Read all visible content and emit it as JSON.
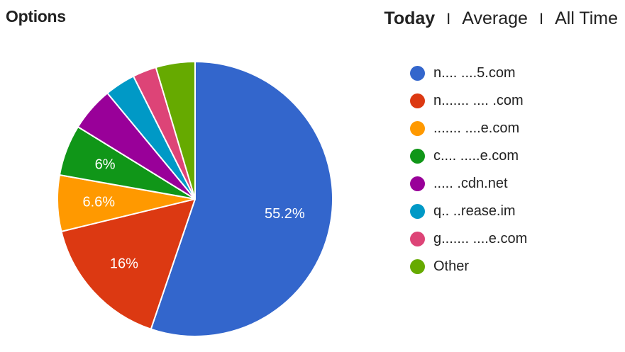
{
  "header": {
    "title": "Options",
    "tabs": [
      {
        "label": "Today",
        "active": true
      },
      {
        "label": "Average",
        "active": false
      },
      {
        "label": "All Time",
        "active": false
      }
    ],
    "separator": "I"
  },
  "chart_data": {
    "type": "pie",
    "title": "Options",
    "slices": [
      {
        "label": "n.... ....5.com",
        "value": 55.2,
        "data_label": "55.2%",
        "color": "#3366cc"
      },
      {
        "label": "n....... .... .com",
        "value": 16,
        "data_label": "16%",
        "color": "#dc3912"
      },
      {
        "label": "....... ....e.com",
        "value": 6.6,
        "data_label": "6.6%",
        "color": "#ff9900"
      },
      {
        "label": "c.... .....e.com",
        "value": 6,
        "data_label": "6%",
        "color": "#109618"
      },
      {
        "label": "..... .cdn.net",
        "value": 5.2,
        "data_label": "",
        "color": "#990099"
      },
      {
        "label": "q.. ..rease.im",
        "value": 3.6,
        "data_label": "",
        "color": "#0099c6"
      },
      {
        "label": "g....... ....e.com",
        "value": 2.8,
        "data_label": "",
        "color": "#dd4477"
      },
      {
        "label": "Other",
        "value": 4.6,
        "data_label": "",
        "color": "#66aa00"
      }
    ],
    "legend_position": "right"
  }
}
